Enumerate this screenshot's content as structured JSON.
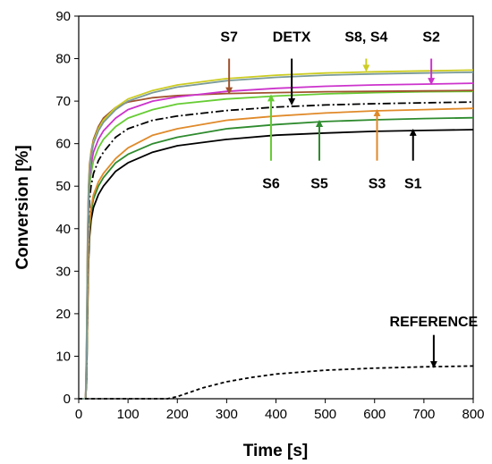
{
  "chart_data": {
    "type": "line",
    "xlabel": "Time [s]",
    "ylabel": "Conversion [%]",
    "xlim": [
      0,
      800
    ],
    "ylim": [
      0,
      90
    ],
    "xticks": [
      0,
      100,
      200,
      300,
      400,
      500,
      600,
      700,
      800
    ],
    "yticks": [
      0,
      10,
      20,
      30,
      40,
      50,
      60,
      70,
      80,
      90
    ],
    "grid": false,
    "x": [
      0,
      14,
      16,
      18,
      20,
      22,
      25,
      30,
      40,
      50,
      75,
      100,
      150,
      200,
      300,
      400,
      500,
      600,
      700,
      800
    ],
    "series": [
      {
        "name": "S1",
        "color": "#000000",
        "dash": "solid",
        "values": [
          0,
          0,
          4,
          20,
          32,
          38,
          42,
          45,
          48,
          50,
          53.5,
          55.5,
          58,
          59.5,
          61,
          62,
          62.5,
          62.9,
          63.1,
          63.3
        ]
      },
      {
        "name": "S5",
        "color": "#2e8b2e",
        "dash": "solid",
        "values": [
          0,
          0,
          5,
          22,
          34,
          40,
          44,
          47,
          50,
          52,
          55.5,
          57.5,
          60,
          61.5,
          63.5,
          64.5,
          65.2,
          65.6,
          65.9,
          66.1
        ]
      },
      {
        "name": "S3",
        "color": "#e08a2a",
        "dash": "solid",
        "values": [
          0,
          0,
          5,
          23,
          35,
          41,
          45,
          48,
          51,
          53,
          56.5,
          59,
          62,
          63.5,
          65.5,
          66.5,
          67.2,
          67.7,
          68,
          68.3
        ]
      },
      {
        "name": "DETX",
        "color": "#000000",
        "dash": "dashdot",
        "values": [
          0,
          0,
          8,
          30,
          42,
          47,
          50,
          53,
          56,
          58,
          61.5,
          63.5,
          65.5,
          66.5,
          67.8,
          68.6,
          69.1,
          69.4,
          69.6,
          69.8
        ]
      },
      {
        "name": "S6",
        "color": "#66cc33",
        "dash": "solid",
        "values": [
          0,
          0,
          10,
          32,
          45,
          50,
          53,
          56,
          59,
          61,
          64,
          66,
          68,
          69.3,
          70.5,
          71.2,
          71.7,
          72,
          72.2,
          72.3
        ]
      },
      {
        "name": "S7",
        "color": "#a0522d",
        "dash": "solid",
        "values": [
          0,
          0,
          14,
          38,
          50,
          55,
          58,
          61,
          64,
          66,
          68.5,
          69.8,
          70.8,
          71.3,
          71.8,
          72,
          72.2,
          72.3,
          72.4,
          72.5
        ]
      },
      {
        "name": "S2",
        "color": "#cc33cc",
        "dash": "solid",
        "values": [
          0,
          0,
          10,
          33,
          46,
          52,
          55,
          58,
          61,
          63,
          66,
          68,
          70,
          71,
          72.3,
          73,
          73.5,
          73.8,
          74,
          74.2
        ]
      },
      {
        "name": "S8, S4",
        "color": "#cccc22",
        "dash": "solid",
        "values": [
          0,
          0,
          12,
          36,
          49,
          54,
          57.5,
          60.5,
          63.5,
          65.5,
          68.5,
          70.5,
          72.5,
          73.8,
          75.3,
          76.1,
          76.6,
          76.9,
          77.1,
          77.3
        ]
      },
      {
        "name": "S8, S4",
        "color": "#7a9a9a",
        "dash": "solid",
        "values": [
          0,
          0,
          11,
          35,
          48,
          53,
          57,
          60,
          63,
          65,
          68,
          70,
          72,
          73.3,
          74.8,
          75.6,
          76.1,
          76.4,
          76.6,
          76.8
        ]
      }
    ],
    "reference": {
      "name": "REFERENCE",
      "color": "#000000",
      "dash": "dashed",
      "x": [
        0,
        180,
        200,
        250,
        300,
        350,
        400,
        500,
        600,
        700,
        800
      ],
      "values": [
        0,
        0,
        0.5,
        2.5,
        4,
        5,
        5.8,
        6.7,
        7.2,
        7.5,
        7.7
      ]
    },
    "annotations": [
      {
        "label": "S7",
        "arrow_x": 305,
        "label_pos": "above",
        "color": "#a0522d",
        "tail": 80,
        "head": 72,
        "text_y": 84
      },
      {
        "label": "DETX",
        "arrow_x": 432,
        "label_pos": "above",
        "color": "#000000",
        "tail": 80,
        "head": 69.4,
        "text_y": 84
      },
      {
        "label": "S8, S4",
        "arrow_x": 583,
        "label_pos": "above",
        "color": "#cccc22",
        "tail": 80,
        "head": 77.3,
        "text_y": 84
      },
      {
        "label": "S2",
        "arrow_x": 715,
        "label_pos": "above",
        "color": "#cc33cc",
        "tail": 80,
        "head": 74.2,
        "text_y": 84
      },
      {
        "label": "S6",
        "arrow_x": 390,
        "label_pos": "below",
        "color": "#66cc33",
        "tail": 56,
        "head": 71.2,
        "text_y": 52
      },
      {
        "label": "S5",
        "arrow_x": 488,
        "label_pos": "below",
        "color": "#2e8b2e",
        "tail": 56,
        "head": 65.2,
        "text_y": 52
      },
      {
        "label": "S3",
        "arrow_x": 605,
        "label_pos": "below",
        "color": "#e08a2a",
        "tail": 56,
        "head": 67.7,
        "text_y": 52
      },
      {
        "label": "S1",
        "arrow_x": 678,
        "label_pos": "below",
        "color": "#000000",
        "tail": 56,
        "head": 63.1,
        "text_y": 52
      },
      {
        "label": "REFERENCE",
        "arrow_x": 720,
        "label_pos": "above",
        "color": "#000000",
        "tail": 15,
        "head": 7.6,
        "text_y": 17
      }
    ]
  }
}
